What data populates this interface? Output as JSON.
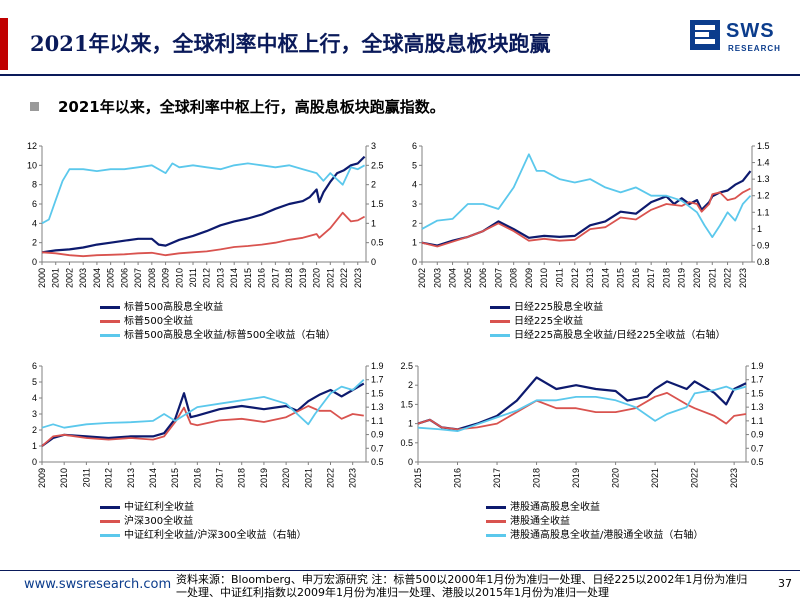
{
  "header": {
    "title": "2021年以来，全球利率中枢上行，全球高股息板块跑赢",
    "logo_text": "SWS",
    "logo_sub": "RESEARCH"
  },
  "subtitle": "2021年以来，全球利率中枢上行，高股息板块跑赢指数。",
  "footer": {
    "site": "www.swsresearch.com",
    "note": "资料来源：Bloomberg、申万宏源研究 注：标普500以2000年1月份为准归一处理、日经225以2002年1月份为准归一处理、中证红利指数以2009年1月份为准归一处理、港股以2015年1月份为准归一处理",
    "page": "37"
  },
  "colors": {
    "dark": "#0d1a6e",
    "red": "#d9534f",
    "cyan": "#5bc8ec"
  },
  "chart_data": [
    {
      "type": "line",
      "x_ticks": [
        "2000",
        "2001",
        "2002",
        "2003",
        "2004",
        "2005",
        "2006",
        "2007",
        "2008",
        "2009",
        "2010",
        "2011",
        "2012",
        "2013",
        "2014",
        "2015",
        "2016",
        "2017",
        "2018",
        "2019",
        "2020",
        "2021",
        "2022",
        "2023"
      ],
      "xlim": [
        2000,
        2023.6
      ],
      "ylim": [
        0,
        12
      ],
      "y_ticks": [
        "0",
        "2",
        "4",
        "6",
        "8",
        "10",
        "12"
      ],
      "y2lim": [
        0,
        3
      ],
      "y2_ticks": [
        "0",
        "0.5",
        "1",
        "1.5",
        "2",
        "2.5",
        "3"
      ],
      "series": [
        {
          "name": "标普500高股息全收益",
          "color": "dark",
          "axis": "left",
          "x": [
            2000,
            2001,
            2002,
            2003,
            2004,
            2005,
            2006,
            2007,
            2008,
            2008.5,
            2009,
            2010,
            2011,
            2012,
            2013,
            2014,
            2015,
            2016,
            2017,
            2018,
            2019,
            2019.5,
            2020,
            2020.2,
            2020.5,
            2021,
            2021.5,
            2022,
            2022.5,
            2023,
            2023.5
          ],
          "y": [
            1,
            1.2,
            1.3,
            1.5,
            1.8,
            2,
            2.2,
            2.4,
            2.4,
            1.8,
            1.7,
            2.3,
            2.7,
            3.2,
            3.8,
            4.2,
            4.5,
            4.9,
            5.5,
            6,
            6.3,
            6.7,
            7.5,
            6.2,
            7.2,
            8.3,
            9.2,
            9.5,
            10,
            10.2,
            10.9
          ]
        },
        {
          "name": "标普500全收益",
          "color": "red",
          "axis": "left",
          "x": [
            2000,
            2001,
            2002,
            2003,
            2004,
            2005,
            2006,
            2007,
            2008,
            2009,
            2010,
            2011,
            2012,
            2013,
            2014,
            2015,
            2016,
            2017,
            2018,
            2019,
            2020,
            2020.2,
            2021,
            2021.9,
            2022.5,
            2023,
            2023.5
          ],
          "y": [
            1,
            0.9,
            0.7,
            0.6,
            0.7,
            0.75,
            0.8,
            0.9,
            0.95,
            0.7,
            0.9,
            1.0,
            1.1,
            1.3,
            1.55,
            1.65,
            1.8,
            2.0,
            2.3,
            2.5,
            2.9,
            2.5,
            3.5,
            5.1,
            4.2,
            4.3,
            4.7
          ]
        },
        {
          "name": "标普500高股息全收益/标普500全收益（右轴）",
          "color": "cyan",
          "axis": "right",
          "x": [
            2000,
            2000.5,
            2001,
            2001.5,
            2002,
            2003,
            2004,
            2005,
            2006,
            2007,
            2008,
            2009,
            2009.5,
            2010,
            2011,
            2012,
            2013,
            2014,
            2015,
            2016,
            2017,
            2018,
            2019,
            2020,
            2020.5,
            2021,
            2021.9,
            2022.5,
            2023,
            2023.5
          ],
          "y": [
            1,
            1.1,
            1.6,
            2.1,
            2.4,
            2.4,
            2.35,
            2.4,
            2.4,
            2.45,
            2.5,
            2.3,
            2.55,
            2.45,
            2.5,
            2.45,
            2.4,
            2.5,
            2.55,
            2.5,
            2.45,
            2.5,
            2.4,
            2.3,
            2.1,
            2.3,
            2.0,
            2.45,
            2.4,
            2.5
          ]
        }
      ],
      "legend": [
        "标普500高股息全收益",
        "标普500全收益",
        "标普500高股息全收益/标普500全收益（右轴）"
      ]
    },
    {
      "type": "line",
      "x_ticks": [
        "2002",
        "2003",
        "2004",
        "2005",
        "2006",
        "2007",
        "2008",
        "2009",
        "2010",
        "2011",
        "2012",
        "2013",
        "2014",
        "2015",
        "2016",
        "2017",
        "2018",
        "2019",
        "2020",
        "2021",
        "2022",
        "2023"
      ],
      "xlim": [
        2002,
        2023.6
      ],
      "ylim": [
        0,
        6
      ],
      "y_ticks": [
        "0",
        "1",
        "2",
        "3",
        "4",
        "5",
        "6"
      ],
      "y2lim": [
        0.8,
        1.5
      ],
      "y2_ticks": [
        "0.8",
        "0.9",
        "1",
        "1.1",
        "1.2",
        "1.3",
        "1.4",
        "1.5"
      ],
      "series": [
        {
          "name": "日经225股息全收益",
          "color": "dark",
          "axis": "left",
          "x": [
            2002,
            2003,
            2004,
            2005,
            2006,
            2007,
            2008,
            2009,
            2010,
            2011,
            2012,
            2013,
            2014,
            2015,
            2016,
            2017,
            2018,
            2018.5,
            2019,
            2019.5,
            2020,
            2020.3,
            2020.8,
            2021,
            2021.5,
            2022,
            2022.5,
            2023,
            2023.5
          ],
          "y": [
            1,
            0.85,
            1.1,
            1.3,
            1.6,
            2.1,
            1.7,
            1.25,
            1.35,
            1.3,
            1.35,
            1.9,
            2.1,
            2.6,
            2.5,
            3.1,
            3.4,
            3.0,
            3.3,
            3.0,
            3.2,
            2.7,
            3.1,
            3.4,
            3.6,
            3.7,
            4.0,
            4.2,
            4.7
          ]
        },
        {
          "name": "日经225全收益",
          "color": "red",
          "axis": "left",
          "x": [
            2002,
            2003,
            2004,
            2005,
            2006,
            2007,
            2008,
            2009,
            2010,
            2011,
            2012,
            2013,
            2014,
            2015,
            2016,
            2017,
            2018,
            2019,
            2019.5,
            2020,
            2020.3,
            2020.8,
            2021,
            2021.5,
            2022,
            2022.5,
            2023,
            2023.5
          ],
          "y": [
            1,
            0.8,
            1.05,
            1.3,
            1.6,
            2.0,
            1.6,
            1.1,
            1.2,
            1.1,
            1.15,
            1.7,
            1.8,
            2.3,
            2.2,
            2.7,
            3.0,
            2.9,
            3.1,
            3.0,
            2.6,
            3.0,
            3.5,
            3.6,
            3.2,
            3.3,
            3.6,
            3.8
          ]
        },
        {
          "name": "日经225高股息全收益/日经225全收益（右轴）",
          "color": "cyan",
          "axis": "right",
          "x": [
            2002,
            2003,
            2004,
            2005,
            2006,
            2007,
            2008,
            2008.5,
            2009,
            2009.5,
            2010,
            2011,
            2012,
            2013,
            2014,
            2015,
            2016,
            2017,
            2018,
            2019,
            2020,
            2020.5,
            2021,
            2021.5,
            2022,
            2022.5,
            2023,
            2023.5
          ],
          "y": [
            1.0,
            1.05,
            1.06,
            1.15,
            1.15,
            1.12,
            1.25,
            1.35,
            1.45,
            1.35,
            1.35,
            1.3,
            1.28,
            1.3,
            1.25,
            1.22,
            1.25,
            1.2,
            1.2,
            1.17,
            1.1,
            1.02,
            0.95,
            1.02,
            1.1,
            1.05,
            1.15,
            1.2
          ]
        }
      ],
      "legend": [
        "日经225股息全收益",
        "日经225全收益",
        "日经225高股息全收益/日经225全收益（右轴）"
      ]
    },
    {
      "type": "line",
      "x_ticks": [
        "2009",
        "2010",
        "2011",
        "2012",
        "2013",
        "2014",
        "2015",
        "2016",
        "2017",
        "2018",
        "2019",
        "2020",
        "2021",
        "2022",
        "2023"
      ],
      "xlim": [
        2009,
        2023.6
      ],
      "ylim": [
        0,
        6
      ],
      "y_ticks": [
        "0",
        "1",
        "2",
        "3",
        "4",
        "5",
        "6"
      ],
      "y2lim": [
        0.5,
        1.9
      ],
      "y2_ticks": [
        "0.5",
        "0.7",
        "0.9",
        "1.1",
        "1.3",
        "1.5",
        "1.7",
        "1.9"
      ],
      "series": [
        {
          "name": "中证红利全收益",
          "color": "dark",
          "axis": "left",
          "x": [
            2009,
            2009.5,
            2010,
            2011,
            2012,
            2013,
            2014,
            2014.5,
            2015,
            2015.4,
            2015.7,
            2016,
            2017,
            2018,
            2019,
            2020,
            2020.5,
            2021,
            2021.5,
            2022,
            2022.5,
            2023,
            2023.5
          ],
          "y": [
            1,
            1.5,
            1.7,
            1.6,
            1.5,
            1.6,
            1.6,
            1.8,
            2.7,
            4.3,
            2.8,
            2.9,
            3.3,
            3.5,
            3.3,
            3.5,
            3.2,
            3.8,
            4.2,
            4.5,
            4.1,
            4.5,
            4.9
          ]
        },
        {
          "name": "沪深300全收益",
          "color": "red",
          "axis": "left",
          "x": [
            2009,
            2009.5,
            2010,
            2011,
            2012,
            2013,
            2014,
            2014.5,
            2015,
            2015.4,
            2015.7,
            2016,
            2017,
            2018,
            2019,
            2020,
            2021,
            2021.5,
            2022,
            2022.5,
            2023,
            2023.5
          ],
          "y": [
            1,
            1.6,
            1.7,
            1.5,
            1.4,
            1.5,
            1.4,
            1.6,
            2.5,
            3.4,
            2.4,
            2.3,
            2.6,
            2.7,
            2.5,
            2.8,
            3.5,
            3.2,
            3.2,
            2.7,
            3.0,
            2.9
          ]
        },
        {
          "name": "中证红利全收益/沪深300全收益（右轴）",
          "color": "cyan",
          "axis": "right",
          "x": [
            2009,
            2009.5,
            2010,
            2011,
            2012,
            2013,
            2014,
            2014.5,
            2015,
            2015.5,
            2016,
            2017,
            2018,
            2019,
            2020,
            2020.5,
            2021,
            2021.3,
            2022,
            2022.5,
            2023,
            2023.5
          ],
          "y": [
            1.0,
            1.05,
            1.0,
            1.05,
            1.07,
            1.08,
            1.1,
            1.2,
            1.1,
            1.2,
            1.3,
            1.35,
            1.4,
            1.45,
            1.35,
            1.2,
            1.05,
            1.2,
            1.5,
            1.6,
            1.55,
            1.7
          ]
        }
      ],
      "legend": [
        "中证红利全收益",
        "沪深300全收益",
        "中证红利全收益/沪深300全收益（右轴）"
      ]
    },
    {
      "type": "line",
      "x_ticks": [
        "2015",
        "2016",
        "2017",
        "2018",
        "2019",
        "2020",
        "2021",
        "2022",
        "2023"
      ],
      "xlim": [
        2015,
        2023.3
      ],
      "ylim": [
        0,
        2.5
      ],
      "y_ticks": [
        "0",
        "0.5",
        "1",
        "1.5",
        "2",
        "2.5"
      ],
      "y2lim": [
        0.5,
        1.9
      ],
      "y2_ticks": [
        "0.5",
        "0.7",
        "0.9",
        "1.1",
        "1.3",
        "1.5",
        "1.7",
        "1.9"
      ],
      "series": [
        {
          "name": "港股通高股息全收益",
          "color": "dark",
          "axis": "left",
          "x": [
            2015,
            2015.3,
            2015.6,
            2016,
            2016.5,
            2017,
            2017.5,
            2018,
            2018.5,
            2019,
            2019.5,
            2020,
            2020.3,
            2020.8,
            2021,
            2021.3,
            2021.8,
            2022,
            2022.5,
            2022.8,
            2023,
            2023.3
          ],
          "y": [
            1,
            1.1,
            0.9,
            0.85,
            1.0,
            1.2,
            1.6,
            2.2,
            1.9,
            2.0,
            1.9,
            1.85,
            1.6,
            1.7,
            1.9,
            2.1,
            1.9,
            2.1,
            1.8,
            1.5,
            1.9,
            2.05
          ]
        },
        {
          "name": "港股通全收益",
          "color": "red",
          "axis": "left",
          "x": [
            2015,
            2015.3,
            2015.6,
            2016,
            2016.5,
            2017,
            2017.5,
            2018,
            2018.5,
            2019,
            2019.5,
            2020,
            2020.5,
            2021,
            2021.3,
            2021.8,
            2022,
            2022.5,
            2022.8,
            2023,
            2023.3
          ],
          "y": [
            1,
            1.1,
            0.9,
            0.85,
            0.9,
            1.0,
            1.3,
            1.6,
            1.4,
            1.4,
            1.3,
            1.3,
            1.4,
            1.7,
            1.8,
            1.5,
            1.4,
            1.2,
            1.0,
            1.2,
            1.25
          ]
        },
        {
          "name": "港股通高股息全收益/港股通全收益（右轴）",
          "color": "cyan",
          "axis": "right",
          "x": [
            2015,
            2015.5,
            2016,
            2016.5,
            2017,
            2017.5,
            2018,
            2018.5,
            2019,
            2019.5,
            2020,
            2020.5,
            2021,
            2021.3,
            2021.8,
            2022,
            2022.5,
            2022.8,
            2023,
            2023.3
          ],
          "y": [
            1.0,
            0.98,
            0.95,
            1.05,
            1.15,
            1.25,
            1.4,
            1.4,
            1.45,
            1.45,
            1.4,
            1.3,
            1.1,
            1.2,
            1.3,
            1.5,
            1.55,
            1.6,
            1.55,
            1.6
          ]
        }
      ],
      "legend": [
        "港股通高股息全收益",
        "港股通全收益",
        "港股通高股息全收益/港股通全收益（右轴）"
      ]
    }
  ]
}
